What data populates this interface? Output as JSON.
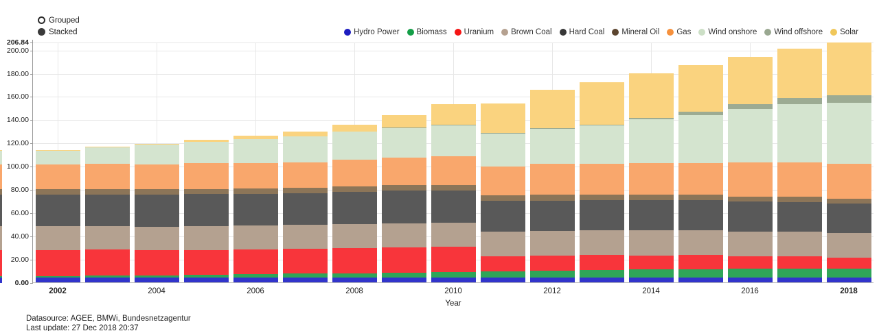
{
  "controls": {
    "options": [
      {
        "label": "Grouped",
        "selected": false
      },
      {
        "label": "Stacked",
        "selected": true
      }
    ]
  },
  "chart_data": {
    "type": "bar",
    "stacked": true,
    "title": "",
    "xlabel": "Year",
    "ylabel": "",
    "ylim": [
      0,
      206.84
    ],
    "grid": true,
    "legend_position": "top-right",
    "yticks": [
      {
        "value": 206.84,
        "label": "206.84",
        "bold": true
      },
      {
        "value": 200,
        "label": "200.00",
        "bold": false
      },
      {
        "value": 180,
        "label": "180.00",
        "bold": false
      },
      {
        "value": 160,
        "label": "160.00",
        "bold": false
      },
      {
        "value": 140,
        "label": "140.00",
        "bold": false
      },
      {
        "value": 120,
        "label": "120.00",
        "bold": false
      },
      {
        "value": 100,
        "label": "100.00",
        "bold": false
      },
      {
        "value": 80,
        "label": "80.00",
        "bold": false
      },
      {
        "value": 60,
        "label": "60.00",
        "bold": false
      },
      {
        "value": 40,
        "label": "40.00",
        "bold": false
      },
      {
        "value": 20,
        "label": "20.00",
        "bold": false
      },
      {
        "value": 0,
        "label": "0.00",
        "bold": true
      }
    ],
    "categories": [
      2002,
      2003,
      2004,
      2005,
      2006,
      2007,
      2008,
      2009,
      2010,
      2011,
      2012,
      2013,
      2014,
      2015,
      2016,
      2017,
      2018
    ],
    "xticks": [
      {
        "index": 0,
        "label": "2002",
        "bold": true
      },
      {
        "index": 2,
        "label": "2004",
        "bold": false
      },
      {
        "index": 4,
        "label": "2006",
        "bold": false
      },
      {
        "index": 6,
        "label": "2008",
        "bold": false
      },
      {
        "index": 8,
        "label": "2010",
        "bold": false
      },
      {
        "index": 10,
        "label": "2012",
        "bold": false
      },
      {
        "index": 12,
        "label": "2014",
        "bold": false
      },
      {
        "index": 14,
        "label": "2016",
        "bold": false
      },
      {
        "index": 16,
        "label": "2018",
        "bold": true
      }
    ],
    "series": [
      {
        "name": "Hydro Power",
        "bar_color": "#3134cb",
        "legend_color": "#1d1dc0",
        "values": [
          4.8,
          4.8,
          4.8,
          4.8,
          4.8,
          4.8,
          4.8,
          4.8,
          4.8,
          4.8,
          4.8,
          4.8,
          4.8,
          4.8,
          4.8,
          4.8,
          4.8
        ]
      },
      {
        "name": "Biomass",
        "bar_color": "#2fa558",
        "legend_color": "#149e47",
        "values": [
          1.2,
          1.5,
          1.9,
          2.3,
          2.9,
          3.3,
          3.7,
          4.3,
          4.9,
          5.5,
          6.0,
          6.4,
          6.9,
          7.1,
          7.3,
          7.6,
          7.7
        ]
      },
      {
        "name": "Uranium",
        "bar_color": "#f8353b",
        "legend_color": "#f51515",
        "values": [
          22.4,
          22.4,
          21.4,
          21.4,
          21.4,
          21.3,
          21.3,
          21.3,
          21.3,
          12.7,
          12.7,
          12.7,
          12.1,
          12.1,
          10.8,
          10.8,
          9.5
        ]
      },
      {
        "name": "Brown Coal",
        "bar_color": "#b4a190",
        "legend_color": "#b5a190",
        "values": [
          20.3,
          20.3,
          20.3,
          20.3,
          20.5,
          20.6,
          20.7,
          20.9,
          21.0,
          21.2,
          21.2,
          21.2,
          21.3,
          21.2,
          21.2,
          21.2,
          21.2
        ]
      },
      {
        "name": "Hard Coal",
        "bar_color": "#595959",
        "legend_color": "#373737",
        "values": [
          27.3,
          27.3,
          27.6,
          27.6,
          27.0,
          27.5,
          28.0,
          28.2,
          27.5,
          26.5,
          26.3,
          26.2,
          26.2,
          26.1,
          26.0,
          25.4,
          25.0
        ]
      },
      {
        "name": "Mineral Oil",
        "bar_color": "#8c7558",
        "legend_color": "#5c452f",
        "values": [
          4.5,
          4.5,
          4.5,
          4.6,
          4.6,
          4.7,
          4.8,
          4.9,
          5.0,
          4.9,
          4.8,
          4.7,
          4.6,
          4.5,
          4.4,
          4.4,
          4.4
        ]
      },
      {
        "name": "Gas",
        "bar_color": "#f9a76c",
        "legend_color": "#f6913d",
        "values": [
          21.4,
          21.5,
          21.7,
          21.9,
          22.0,
          21.5,
          23.0,
          23.6,
          24.6,
          24.5,
          26.5,
          26.7,
          27.0,
          27.2,
          29.0,
          29.4,
          29.9
        ]
      },
      {
        "name": "Wind onshore",
        "bar_color": "#d4e4cf",
        "legend_color": "#ccdfc6",
        "values": [
          11.9,
          14.6,
          16.6,
          18.4,
          20.5,
          22.2,
          23.8,
          25.7,
          26.9,
          28.8,
          30.7,
          33.0,
          38.1,
          41.2,
          45.9,
          50.0,
          52.5
        ]
      },
      {
        "name": "Wind offshore",
        "bar_color": "#9cab93",
        "legend_color": "#9aa891",
        "values": [
          0,
          0,
          0,
          0,
          0,
          0,
          0,
          0.1,
          0.1,
          0.2,
          0.3,
          0.5,
          1.0,
          3.3,
          4.2,
          5.4,
          6.4
        ]
      },
      {
        "name": "Solar",
        "bar_color": "#fad37f",
        "legend_color": "#f0c75a",
        "values": [
          0.3,
          0.4,
          1.1,
          2.1,
          2.9,
          4.2,
          6.1,
          10.6,
          18.0,
          25.4,
          33.0,
          36.3,
          38.2,
          39.7,
          40.7,
          42.4,
          45.44
        ]
      }
    ],
    "clipped_bar_at_left_edge": true
  },
  "footer": {
    "line1": "Datasource: AGEE, BMWi, Bundesnetzagentur",
    "line2": "Last update: 27 Dec 2018 20:37"
  }
}
